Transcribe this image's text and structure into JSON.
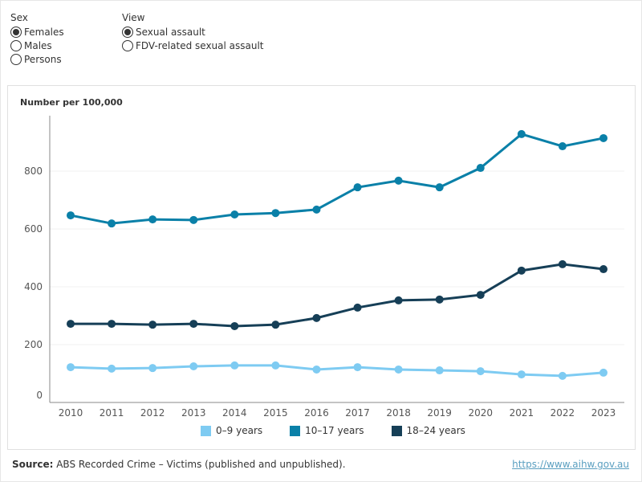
{
  "controls": {
    "sex": {
      "title": "Sex",
      "options": [
        "Females",
        "Males",
        "Persons"
      ],
      "selected": 0
    },
    "view": {
      "title": "View",
      "options": [
        "Sexual assault",
        "FDV-related sexual assault"
      ],
      "selected": 0
    }
  },
  "chart_data": {
    "type": "line",
    "ylabel": "Number per 100,000",
    "ylim": [
      0,
      1000
    ],
    "yticks": [
      0,
      200,
      400,
      600,
      800
    ],
    "grid": true,
    "legend_position": "bottom",
    "x": [
      "2010",
      "2011",
      "2012",
      "2013",
      "2014",
      "2015",
      "2016",
      "2017",
      "2018",
      "2019",
      "2020",
      "2021",
      "2022",
      "2023"
    ],
    "series": [
      {
        "name": "0–9 years",
        "color": "#7ecbf2",
        "values": [
          122,
          117,
          119,
          125,
          128,
          128,
          114,
          122,
          114,
          111,
          108,
          97,
          92,
          103
        ]
      },
      {
        "name": "10–17 years",
        "color": "#0a80a8",
        "values": [
          647,
          619,
          633,
          631,
          650,
          655,
          667,
          744,
          767,
          744,
          811,
          928,
          886,
          914
        ]
      },
      {
        "name": "18–24 years",
        "color": "#163f57",
        "values": [
          272,
          272,
          269,
          272,
          264,
          269,
          292,
          328,
          353,
          356,
          372,
          456,
          478,
          461
        ]
      }
    ]
  },
  "footer": {
    "source_label": "Source:",
    "source_text": " ABS Recorded Crime – Victims (published and unpublished).",
    "link": "https://www.aihw.gov.au"
  }
}
